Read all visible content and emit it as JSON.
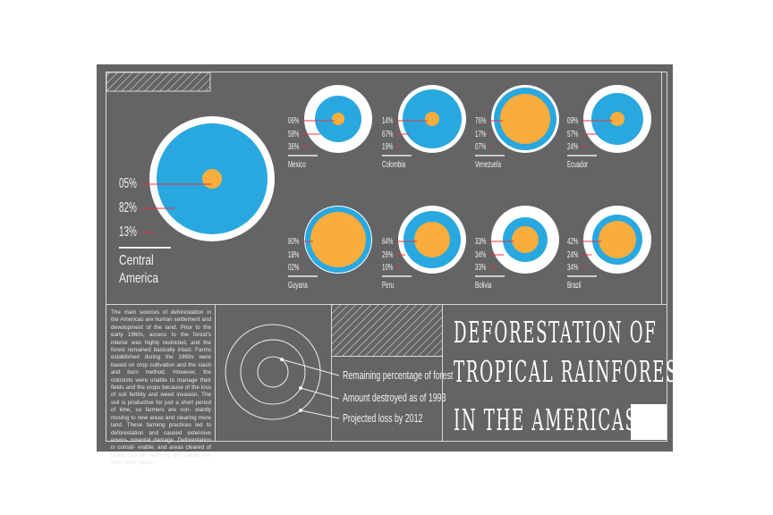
{
  "title_lines": [
    "DEFORESTATION OF",
    "TROPICAL RAINFORESTS",
    "IN THE AMERICAS"
  ],
  "body_text": "The main sources of deforestation in the Americas are human settlement and development of the land. Prior to the early 1960s, access to the forest's interior was highly restricted, and the forest remained basically intact. Farms established during the 1960s were based on crop cultivation and the slash and burn method. However, the colonists were unable to manage their fields and the crops because of the loss of soil fertility and weed invasion. The soil is productive for just a short period of time, so farmers are con- stantly moving to new areas and clearing more land. These farming practices led to deforestation and caused extensive enviro- nmental damage. Deforestation is consid- erable, and areas cleared of forest can be seen by the naked eye from outer space.",
  "legend": [
    "Remaining percentage of forest",
    "Amount destroyed as of 1993",
    "Projected loss by 2012"
  ],
  "colors": {
    "background": "#646366",
    "remaining": "#f9ad3c",
    "destroyed": "#29a8e0",
    "projected": "#ffffff",
    "pointer": "#e0393e"
  },
  "regions": [
    {
      "name": "Central America",
      "values": [
        "05%",
        "82%",
        "13%"
      ]
    },
    {
      "name": "Mexico",
      "values": [
        "06%",
        "58%",
        "36%"
      ]
    },
    {
      "name": "Colombia",
      "values": [
        "14%",
        "67%",
        "19%"
      ]
    },
    {
      "name": "Venezuela",
      "values": [
        "76%",
        "17%",
        "07%"
      ]
    },
    {
      "name": "Ecuador",
      "values": [
        "09%",
        "57%",
        "24%"
      ]
    },
    {
      "name": "Guyana",
      "values": [
        "80%",
        "18%",
        "02%"
      ]
    },
    {
      "name": "Peru",
      "values": [
        "64%",
        "26%",
        "10%"
      ]
    },
    {
      "name": "Bolivia",
      "values": [
        "33%",
        "34%",
        "33%"
      ]
    },
    {
      "name": "Brazil",
      "values": [
        "42%",
        "24%",
        "34%"
      ]
    }
  ]
}
